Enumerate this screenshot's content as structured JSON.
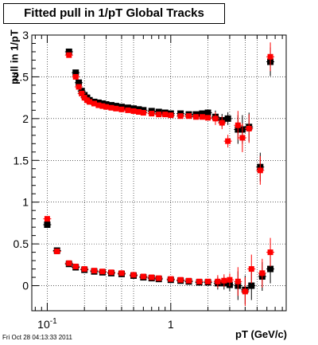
{
  "chart_data": {
    "type": "scatter",
    "title": "Fitted pull in 1/pT  Global Tracks",
    "xlabel": "pT (GeV/c)",
    "ylabel": "pull in 1/pT",
    "x_scale": "log",
    "xlim": [
      0.075,
      8.6
    ],
    "ylim": [
      -0.3,
      3.0
    ],
    "grid": true,
    "x_tick_labels": [
      {
        "value": 0.1,
        "base": "10",
        "exp": "-1"
      },
      {
        "value": 1,
        "base": "1",
        "exp": ""
      }
    ],
    "y_ticks": [
      0,
      0.5,
      1,
      1.5,
      2,
      2.5,
      3
    ],
    "series": [
      {
        "color": "#000000",
        "points": [
          [
            0.1,
            0.73
          ],
          [
            0.12,
            0.42
          ],
          [
            0.15,
            2.8
          ],
          [
            0.17,
            2.55
          ],
          [
            0.18,
            2.43
          ],
          [
            0.19,
            2.33
          ],
          [
            0.2,
            2.28
          ],
          [
            0.21,
            2.25
          ],
          [
            0.22,
            2.22
          ],
          [
            0.24,
            2.2
          ],
          [
            0.26,
            2.19
          ],
          [
            0.28,
            2.18
          ],
          [
            0.3,
            2.17
          ],
          [
            0.33,
            2.16
          ],
          [
            0.36,
            2.15
          ],
          [
            0.4,
            2.14
          ],
          [
            0.45,
            2.13
          ],
          [
            0.5,
            2.12
          ],
          [
            0.55,
            2.11
          ],
          [
            0.6,
            2.1
          ],
          [
            0.7,
            2.09
          ],
          [
            0.8,
            2.08
          ],
          [
            0.9,
            2.07
          ],
          [
            1.0,
            2.06
          ],
          [
            1.2,
            2.06
          ],
          [
            1.4,
            2.05
          ],
          [
            1.6,
            2.05
          ],
          [
            1.8,
            2.06
          ],
          [
            2.0,
            2.07
          ],
          [
            2.3,
            2.02
          ],
          [
            2.6,
            1.98
          ],
          [
            2.9,
            2.0
          ],
          [
            3.5,
            1.87
          ],
          [
            3.8,
            1.87
          ],
          [
            4.3,
            1.9
          ],
          [
            5.3,
            1.42
          ],
          [
            6.4,
            2.68
          ],
          [
            0.15,
            0.26
          ],
          [
            0.17,
            0.22
          ],
          [
            0.2,
            0.19
          ],
          [
            0.24,
            0.17
          ],
          [
            0.28,
            0.16
          ],
          [
            0.33,
            0.15
          ],
          [
            0.4,
            0.14
          ],
          [
            0.5,
            0.12
          ],
          [
            0.6,
            0.1
          ],
          [
            0.7,
            0.09
          ],
          [
            0.8,
            0.08
          ],
          [
            1.0,
            0.07
          ],
          [
            1.2,
            0.06
          ],
          [
            1.4,
            0.05
          ],
          [
            1.7,
            0.04
          ],
          [
            2.0,
            0.04
          ],
          [
            2.4,
            0.03
          ],
          [
            2.7,
            0.03
          ],
          [
            3.0,
            0.01
          ],
          [
            3.5,
            0.0
          ],
          [
            4.0,
            -0.05
          ],
          [
            4.5,
            0.0
          ],
          [
            5.5,
            0.11
          ],
          [
            6.4,
            0.2
          ]
        ]
      },
      {
        "color": "#ff0000",
        "points": [
          [
            0.1,
            0.8
          ],
          [
            0.12,
            0.41
          ],
          [
            0.15,
            2.76
          ],
          [
            0.17,
            2.5
          ],
          [
            0.18,
            2.38
          ],
          [
            0.19,
            2.3
          ],
          [
            0.2,
            2.25
          ],
          [
            0.21,
            2.22
          ],
          [
            0.22,
            2.2
          ],
          [
            0.24,
            2.18
          ],
          [
            0.26,
            2.16
          ],
          [
            0.28,
            2.15
          ],
          [
            0.3,
            2.14
          ],
          [
            0.33,
            2.13
          ],
          [
            0.36,
            2.12
          ],
          [
            0.4,
            2.11
          ],
          [
            0.45,
            2.1
          ],
          [
            0.5,
            2.09
          ],
          [
            0.55,
            2.08
          ],
          [
            0.6,
            2.07
          ],
          [
            0.7,
            2.06
          ],
          [
            0.8,
            2.05
          ],
          [
            0.9,
            2.05
          ],
          [
            1.0,
            2.04
          ],
          [
            1.2,
            2.03
          ],
          [
            1.4,
            2.03
          ],
          [
            1.6,
            2.02
          ],
          [
            1.8,
            2.02
          ],
          [
            2.0,
            2.01
          ],
          [
            2.3,
            2.0
          ],
          [
            2.6,
            1.95
          ],
          [
            2.9,
            1.73
          ],
          [
            3.5,
            1.92
          ],
          [
            3.8,
            1.77
          ],
          [
            4.3,
            1.88
          ],
          [
            5.3,
            1.38
          ],
          [
            6.4,
            2.74
          ],
          [
            0.15,
            0.27
          ],
          [
            0.17,
            0.23
          ],
          [
            0.2,
            0.2
          ],
          [
            0.24,
            0.18
          ],
          [
            0.28,
            0.17
          ],
          [
            0.33,
            0.16
          ],
          [
            0.4,
            0.15
          ],
          [
            0.5,
            0.13
          ],
          [
            0.6,
            0.11
          ],
          [
            0.7,
            0.1
          ],
          [
            0.8,
            0.09
          ],
          [
            1.0,
            0.08
          ],
          [
            1.2,
            0.07
          ],
          [
            1.4,
            0.06
          ],
          [
            1.7,
            0.05
          ],
          [
            2.0,
            0.05
          ],
          [
            2.4,
            0.05
          ],
          [
            2.7,
            0.06
          ],
          [
            3.0,
            0.07
          ],
          [
            3.5,
            0.05
          ],
          [
            4.0,
            -0.07
          ],
          [
            4.5,
            0.2
          ],
          [
            5.5,
            0.15
          ],
          [
            6.4,
            0.4
          ]
        ]
      }
    ]
  },
  "footer": "Fri Oct 28 04:13:33 2011"
}
